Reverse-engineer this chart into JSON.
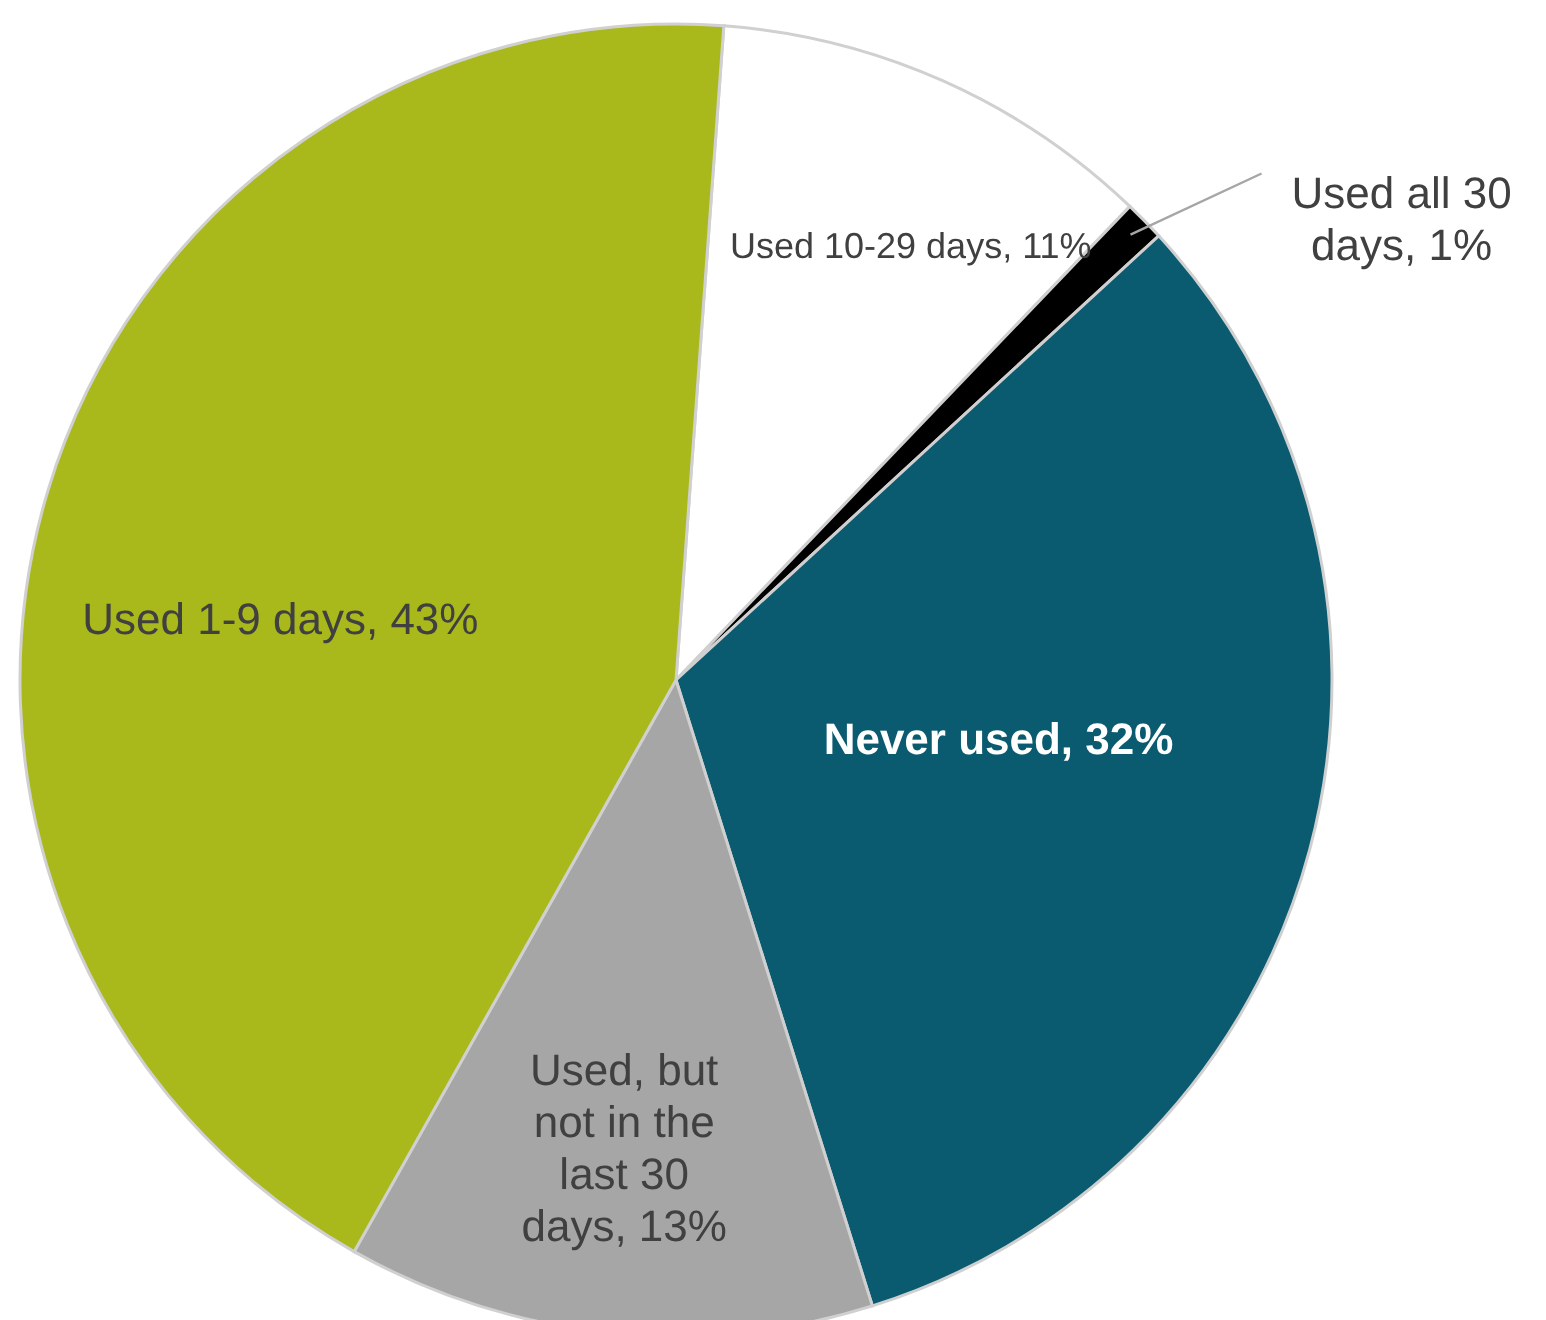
{
  "chart_data": {
    "type": "pie",
    "categories": [
      "Used 10-29 days",
      "Used all 30 days",
      "Never used",
      "Used, but not in the last 30 days",
      "Used 1-9 days"
    ],
    "values": [
      11,
      1,
      32,
      13,
      43
    ],
    "value_labels": [
      "11%",
      "1%",
      "32%",
      "13%",
      "43%"
    ],
    "colors": [
      "#ffffff",
      "#000000",
      "#0a5a70",
      "#a6a6a6",
      "#a9b81a"
    ]
  }
}
